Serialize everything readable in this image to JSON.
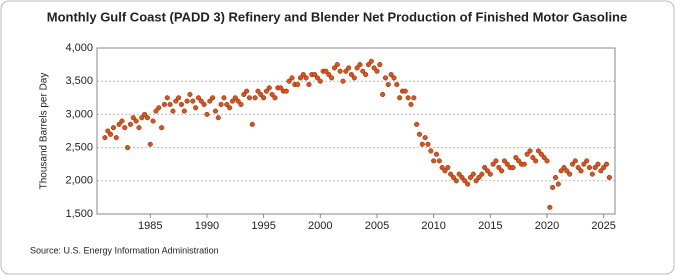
{
  "chart_data": {
    "type": "scatter",
    "title": "Monthly Gulf Coast (PADD 3) Refinery and Blender Net Production of Finished Motor Gasoline",
    "y_label": "Thousand Barrels per Day",
    "source": "Source: U.S. Energy Information Administration",
    "color": "#d9531e",
    "grid": true,
    "xlim": [
      1980.3,
      2026
    ],
    "ylim": [
      1500,
      4000
    ],
    "xticks": [
      1985,
      1990,
      1995,
      2000,
      2005,
      2010,
      2015,
      2020,
      2025
    ],
    "yticks": [
      {
        "value": 1500,
        "label": "1,500"
      },
      {
        "value": 2000,
        "label": "2,000"
      },
      {
        "value": 2500,
        "label": "2,500"
      },
      {
        "value": 3000,
        "label": "3,000"
      },
      {
        "value": 3500,
        "label": "3,500"
      },
      {
        "value": 4000,
        "label": "4,000"
      }
    ],
    "x": [
      1981,
      1981.25,
      1981.5,
      1981.75,
      1982,
      1982.25,
      1982.5,
      1982.75,
      1983,
      1983.25,
      1983.5,
      1983.75,
      1984,
      1984.25,
      1984.5,
      1984.75,
      1985,
      1985.25,
      1985.5,
      1985.75,
      1986,
      1986.25,
      1986.5,
      1986.75,
      1987,
      1987.25,
      1987.5,
      1987.75,
      1988,
      1988.25,
      1988.5,
      1988.75,
      1989,
      1989.25,
      1989.5,
      1989.75,
      1990,
      1990.25,
      1990.5,
      1990.75,
      1991,
      1991.25,
      1991.5,
      1991.75,
      1992,
      1992.25,
      1992.5,
      1992.75,
      1993,
      1993.25,
      1993.5,
      1993.75,
      1994,
      1994.25,
      1994.5,
      1994.75,
      1995,
      1995.25,
      1995.5,
      1995.75,
      1996,
      1996.25,
      1996.5,
      1996.75,
      1997,
      1997.25,
      1997.5,
      1997.75,
      1998,
      1998.25,
      1998.5,
      1998.75,
      1999,
      1999.25,
      1999.5,
      1999.75,
      2000,
      2000.25,
      2000.5,
      2000.75,
      2001,
      2001.25,
      2001.5,
      2001.75,
      2002,
      2002.25,
      2002.5,
      2002.75,
      2003,
      2003.25,
      2003.5,
      2003.75,
      2004,
      2004.25,
      2004.5,
      2004.75,
      2005,
      2005.25,
      2005.5,
      2005.75,
      2006,
      2006.25,
      2006.5,
      2006.75,
      2007,
      2007.25,
      2007.5,
      2007.75,
      2008,
      2008.25,
      2008.5,
      2008.75,
      2009,
      2009.25,
      2009.5,
      2009.75,
      2010,
      2010.25,
      2010.5,
      2010.75,
      2011,
      2011.25,
      2011.5,
      2011.75,
      2012,
      2012.25,
      2012.5,
      2012.75,
      2013,
      2013.25,
      2013.5,
      2013.75,
      2014,
      2014.25,
      2014.5,
      2014.75,
      2015,
      2015.25,
      2015.5,
      2015.75,
      2016,
      2016.25,
      2016.5,
      2016.75,
      2017,
      2017.25,
      2017.5,
      2017.75,
      2018,
      2018.25,
      2018.5,
      2018.75,
      2019,
      2019.25,
      2019.5,
      2019.75,
      2020,
      2020.25,
      2020.5,
      2020.75,
      2021,
      2021.25,
      2021.5,
      2021.75,
      2022,
      2022.25,
      2022.5,
      2022.75,
      2023,
      2023.25,
      2023.5,
      2023.75,
      2024,
      2024.25,
      2024.5,
      2024.75,
      2025,
      2025.25,
      2025.5
    ],
    "values": [
      2650,
      2750,
      2700,
      2800,
      2650,
      2850,
      2900,
      2800,
      2500,
      2850,
      2950,
      2900,
      2800,
      2950,
      3000,
      2950,
      2550,
      2900,
      3050,
      3100,
      2800,
      3150,
      3250,
      3150,
      3050,
      3200,
      3250,
      3150,
      3050,
      3200,
      3300,
      3200,
      3100,
      3250,
      3200,
      3150,
      3000,
      3200,
      3250,
      3050,
      2950,
      3150,
      3250,
      3150,
      3100,
      3200,
      3250,
      3200,
      3150,
      3300,
      3350,
      3250,
      2850,
      3250,
      3350,
      3300,
      3250,
      3350,
      3400,
      3300,
      3250,
      3400,
      3400,
      3350,
      3350,
      3500,
      3550,
      3450,
      3450,
      3550,
      3600,
      3550,
      3450,
      3600,
      3600,
      3550,
      3500,
      3650,
      3650,
      3600,
      3550,
      3700,
      3750,
      3650,
      3500,
      3650,
      3700,
      3600,
      3550,
      3700,
      3750,
      3650,
      3600,
      3750,
      3800,
      3700,
      3650,
      3750,
      3300,
      3550,
      3450,
      3600,
      3550,
      3450,
      3250,
      3350,
      3350,
      3250,
      3150,
      3250,
      2850,
      2700,
      2550,
      2650,
      2550,
      2450,
      2300,
      2400,
      2300,
      2200,
      2150,
      2200,
      2100,
      2050,
      2000,
      2100,
      2050,
      2000,
      1950,
      2050,
      2100,
      2000,
      2050,
      2100,
      2200,
      2150,
      2100,
      2250,
      2300,
      2200,
      2150,
      2300,
      2250,
      2200,
      2200,
      2350,
      2300,
      2250,
      2250,
      2400,
      2450,
      2350,
      2300,
      2450,
      2400,
      2350,
      2300,
      1600,
      1900,
      2050,
      1950,
      2150,
      2200,
      2150,
      2100,
      2250,
      2300,
      2200,
      2150,
      2250,
      2300,
      2200,
      2100,
      2200,
      2250,
      2150,
      2200,
      2250,
      2050
    ]
  }
}
